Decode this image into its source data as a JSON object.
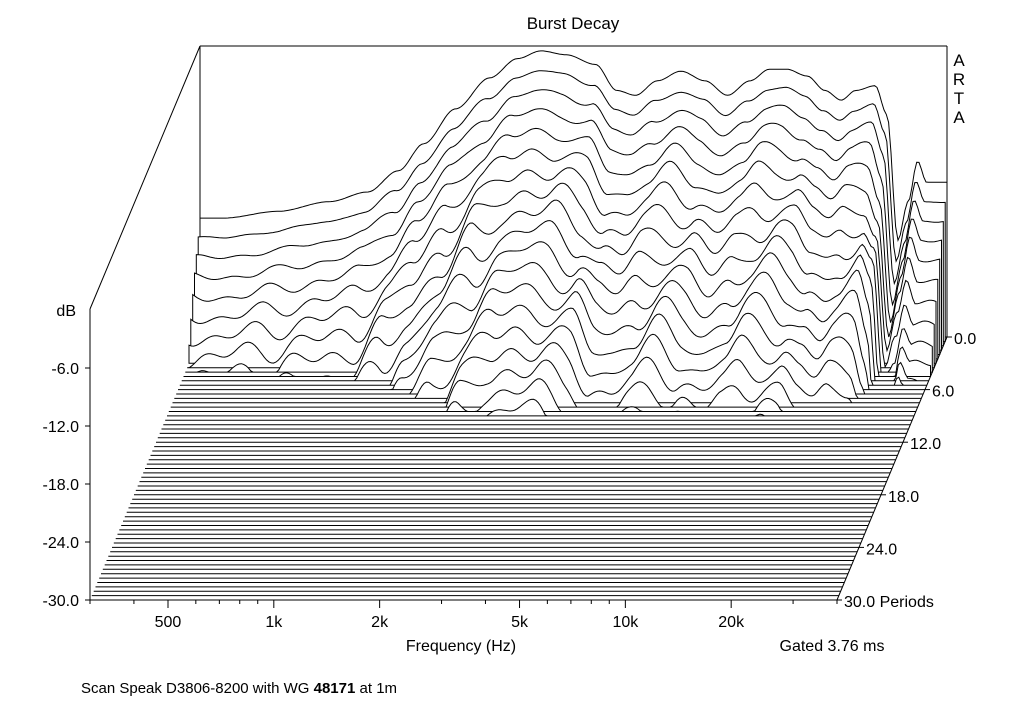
{
  "chart_data": {
    "type": "waterfall",
    "title": "Burst Decay",
    "watermark": "ARTA",
    "xlabel": "Frequency (Hz)",
    "ylabel": "dB",
    "x_scale": "log",
    "xlim": [
      300,
      40000
    ],
    "ylim": [
      -30,
      0
    ],
    "x_ticks": [
      500,
      1000,
      2000,
      5000,
      10000,
      20000
    ],
    "x_tick_labels": [
      "500",
      "1k",
      "2k",
      "5k",
      "10k",
      "20k"
    ],
    "y_ticks": [
      -6,
      -12,
      -18,
      -24,
      -30
    ],
    "y_tick_labels": [
      "-6.0",
      "-12.0",
      "-18.0",
      "-24.0",
      "-30.0"
    ],
    "z_label": "Periods",
    "z_ticks": [
      0,
      6,
      12,
      18,
      24,
      30
    ],
    "z_tick_labels": [
      "0.0",
      "6.0",
      "12.0",
      "18.0",
      "24.0",
      "30.0 Periods"
    ],
    "gate_note": "Gated 3.76 ms",
    "initial_response": {
      "frequency_hz": [
        350,
        500,
        700,
        900,
        1100,
        1300,
        1600,
        2000,
        2400,
        2800,
        3300,
        4000,
        4600,
        5200,
        6000,
        7000,
        8200,
        9500,
        11000,
        12500,
        14000,
        16000,
        18000,
        20000,
        22000,
        25000,
        27000,
        29000,
        31000,
        33000,
        35000
      ],
      "level_db": [
        -17.7,
        -17.0,
        -16.0,
        -15.0,
        -12.8,
        -10.0,
        -6.4,
        -3.2,
        -1.2,
        -0.4,
        -0.8,
        -1.8,
        -4.5,
        -5.0,
        -3.5,
        -2.5,
        -3.5,
        -5.0,
        -3.5,
        -2.3,
        -2.3,
        -3.0,
        -4.5,
        -5.5,
        -4.5,
        -4.0,
        -7.0,
        -20.0,
        -16.0,
        -11.8,
        -14.0
      ]
    }
  },
  "footer": {
    "text_before": "Scan Speak D3806-8200 with WG ",
    "text_bold": "48171",
    "text_after": " at 1m"
  }
}
